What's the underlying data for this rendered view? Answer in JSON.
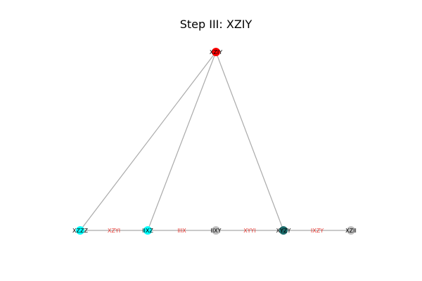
{
  "title": "Step III: XZIY",
  "colors": {
    "edge": "#aaaaaa",
    "edge_label": "#e8403a",
    "root": "#ff0000",
    "cyan": "#00ffff",
    "teal": "#1b6b6b",
    "gray": "#bfbfbf"
  },
  "nodes": [
    {
      "id": "root",
      "label": "XZIY",
      "color": "root"
    },
    {
      "id": "n1",
      "label": "XZZZ",
      "color": "cyan"
    },
    {
      "id": "n2",
      "label": "IIXZ",
      "color": "cyan"
    },
    {
      "id": "n3",
      "label": "IIXY",
      "color": "gray"
    },
    {
      "id": "n4",
      "label": "XYZY",
      "color": "teal"
    },
    {
      "id": "n5",
      "label": "XZII",
      "color": "gray"
    }
  ],
  "edges": [
    {
      "from": "root",
      "to": "n1",
      "label": ""
    },
    {
      "from": "root",
      "to": "n2",
      "label": ""
    },
    {
      "from": "root",
      "to": "n4",
      "label": ""
    },
    {
      "from": "n1",
      "to": "n2",
      "label": "XZYI"
    },
    {
      "from": "n2",
      "to": "n3",
      "label": "IIIX"
    },
    {
      "from": "n3",
      "to": "n4",
      "label": "XYYI"
    },
    {
      "from": "n4",
      "to": "n5",
      "label": "IXZY"
    }
  ]
}
